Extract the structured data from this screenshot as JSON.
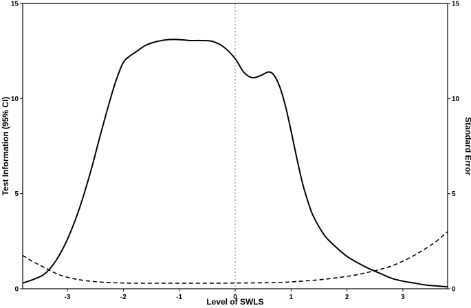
{
  "chart_data": {
    "type": "line",
    "xlabel": "Level of SWLS",
    "ylabel": "Test Information (95% CI)",
    "ylabel_right": "Standard Error",
    "xlim": [
      -3.8,
      3.8
    ],
    "ylim": [
      0,
      15
    ],
    "ylim_right": [
      0,
      15
    ],
    "x_ticks": [
      -3,
      -2,
      -1,
      0,
      1,
      2,
      3
    ],
    "y_ticks": [
      0,
      5,
      10,
      15
    ],
    "y_ticks_right": [
      0,
      5,
      10,
      15
    ],
    "reference_line_x": 0,
    "grid": false,
    "series": [
      {
        "style": "solid",
        "axis": "left",
        "x": [
          -3.8,
          -3.6,
          -3.4,
          -3.2,
          -3.0,
          -2.8,
          -2.6,
          -2.4,
          -2.2,
          -2.1,
          -2.0,
          -1.9,
          -1.8,
          -1.6,
          -1.4,
          -1.2,
          -1.0,
          -0.8,
          -0.6,
          -0.4,
          -0.2,
          0.0,
          0.15,
          0.3,
          0.45,
          0.6,
          0.7,
          0.8,
          0.9,
          1.0,
          1.1,
          1.2,
          1.3,
          1.4,
          1.6,
          1.8,
          2.0,
          2.2,
          2.4,
          2.6,
          2.8,
          3.0,
          3.2,
          3.4,
          3.6,
          3.8
        ],
        "values": [
          0.3,
          0.5,
          0.8,
          1.5,
          2.6,
          4.1,
          6.0,
          8.2,
          10.3,
          11.2,
          11.9,
          12.2,
          12.4,
          12.8,
          13.0,
          13.1,
          13.1,
          13.05,
          13.05,
          13.0,
          12.7,
          12.1,
          11.4,
          11.1,
          11.2,
          11.4,
          11.2,
          10.6,
          9.6,
          8.3,
          6.9,
          5.6,
          4.6,
          3.8,
          2.8,
          2.2,
          1.7,
          1.35,
          1.05,
          0.8,
          0.55,
          0.4,
          0.3,
          0.2,
          0.15,
          0.1
        ]
      },
      {
        "style": "dashed",
        "axis": "right",
        "x": [
          -3.8,
          -3.6,
          -3.4,
          -3.2,
          -3.0,
          -2.8,
          -2.6,
          -2.4,
          -2.2,
          -2.0,
          -1.6,
          -1.2,
          -0.8,
          -0.4,
          0.0,
          0.4,
          0.8,
          1.2,
          1.6,
          2.0,
          2.2,
          2.4,
          2.6,
          2.8,
          3.0,
          3.2,
          3.4,
          3.6,
          3.8
        ],
        "values": [
          1.75,
          1.4,
          1.1,
          0.8,
          0.6,
          0.48,
          0.4,
          0.35,
          0.32,
          0.3,
          0.29,
          0.29,
          0.29,
          0.29,
          0.3,
          0.31,
          0.33,
          0.4,
          0.5,
          0.65,
          0.75,
          0.88,
          1.02,
          1.2,
          1.45,
          1.75,
          2.1,
          2.5,
          3.0
        ]
      }
    ]
  }
}
